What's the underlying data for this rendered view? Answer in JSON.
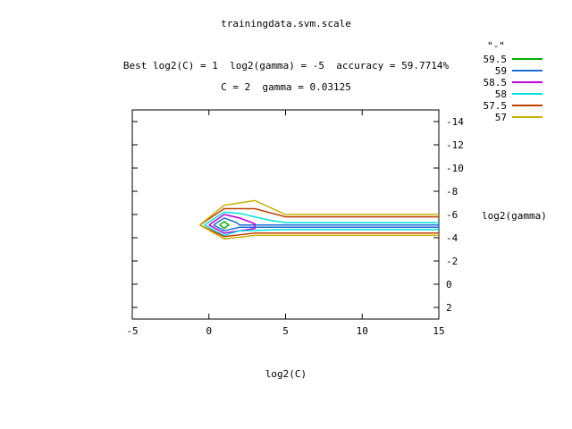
{
  "title": "trainingdata.svm.scale",
  "subtitle": "Best log2(C) = 1  log2(gamma) = -5  accuracy = 59.7714%",
  "subtitle2": "C = 2  gamma = 0.03125",
  "chart_data": {
    "type": "contour",
    "title": "trainingdata.svm.scale",
    "xlabel": "log2(C)",
    "ylabel": "log2(gamma)",
    "xlim": [
      -5,
      15
    ],
    "ylim": [
      3,
      -15
    ],
    "x_ticks": [
      -5,
      0,
      5,
      10,
      15
    ],
    "y_ticks": [
      2,
      0,
      -2,
      -4,
      -6,
      -8,
      -10,
      -12,
      -14
    ],
    "y_axis_side": "right",
    "y_axis_inverted": true,
    "grid": false,
    "legend_title": "\"-\"",
    "legend_position": "top-right",
    "series": [
      {
        "name": "59.5",
        "color": "#00b000",
        "points": [
          [
            0.7,
            -5.1
          ],
          [
            1,
            -5.4
          ],
          [
            1.3,
            -5.1
          ],
          [
            1,
            -4.8
          ],
          [
            0.7,
            -5.1
          ]
        ]
      },
      {
        "name": "59",
        "color": "#1a6fd4",
        "points": [
          [
            0.3,
            -5.1
          ],
          [
            1,
            -5.7
          ],
          [
            1.8,
            -5.3
          ],
          [
            2,
            -5.1
          ],
          [
            15,
            -5.1
          ],
          [
            15,
            -4.9
          ],
          [
            2,
            -4.9
          ],
          [
            1,
            -4.6
          ],
          [
            0.3,
            -5.1
          ]
        ]
      },
      {
        "name": "58.5",
        "color": "#c000e0",
        "points": [
          [
            0,
            -5.1
          ],
          [
            1,
            -6.0
          ],
          [
            2,
            -5.7
          ],
          [
            3,
            -5.2
          ],
          [
            3,
            -4.8
          ],
          [
            1,
            -4.4
          ],
          [
            0,
            -5.1
          ]
        ]
      },
      {
        "name": "58",
        "color": "#00e0e0",
        "points": [
          [
            -0.3,
            -5.1
          ],
          [
            1,
            -6.2
          ],
          [
            2,
            -6.1
          ],
          [
            3,
            -5.8
          ],
          [
            4,
            -5.5
          ],
          [
            5,
            -5.3
          ],
          [
            15,
            -5.3
          ]
        ]
      },
      {
        "name": "58",
        "color": "#00e0e0",
        "points": [
          [
            15,
            -4.7
          ],
          [
            5,
            -4.7
          ],
          [
            2,
            -4.6
          ],
          [
            1,
            -4.2
          ],
          [
            -0.3,
            -5.1
          ]
        ]
      },
      {
        "name": "57.5",
        "color": "#c04000",
        "points": [
          [
            -0.6,
            -5.1
          ],
          [
            1,
            -6.5
          ],
          [
            2,
            -6.5
          ],
          [
            3,
            -6.5
          ],
          [
            5,
            -5.8
          ],
          [
            15,
            -5.8
          ]
        ]
      },
      {
        "name": "57.5",
        "color": "#c04000",
        "points": [
          [
            15,
            -4.4
          ],
          [
            3,
            -4.4
          ],
          [
            1,
            -4.1
          ],
          [
            -0.6,
            -5.1
          ]
        ]
      },
      {
        "name": "57",
        "color": "#c8b000",
        "points": [
          [
            -0.6,
            -5.1
          ],
          [
            1,
            -6.8
          ],
          [
            2,
            -7.0
          ],
          [
            3,
            -7.2
          ],
          [
            5,
            -6.0
          ],
          [
            15,
            -6.0
          ]
        ]
      },
      {
        "name": "57",
        "color": "#c8b000",
        "points": [
          [
            15,
            -4.2
          ],
          [
            3,
            -4.2
          ],
          [
            1,
            -3.9
          ],
          [
            -0.6,
            -5.1
          ]
        ]
      }
    ],
    "legend": [
      {
        "name": "59.5",
        "color": "#00b000"
      },
      {
        "name": "59",
        "color": "#1a6fd4"
      },
      {
        "name": "58.5",
        "color": "#c000e0"
      },
      {
        "name": "58",
        "color": "#00e0e0"
      },
      {
        "name": "57.5",
        "color": "#c04000"
      },
      {
        "name": "57",
        "color": "#c8b000"
      }
    ]
  }
}
